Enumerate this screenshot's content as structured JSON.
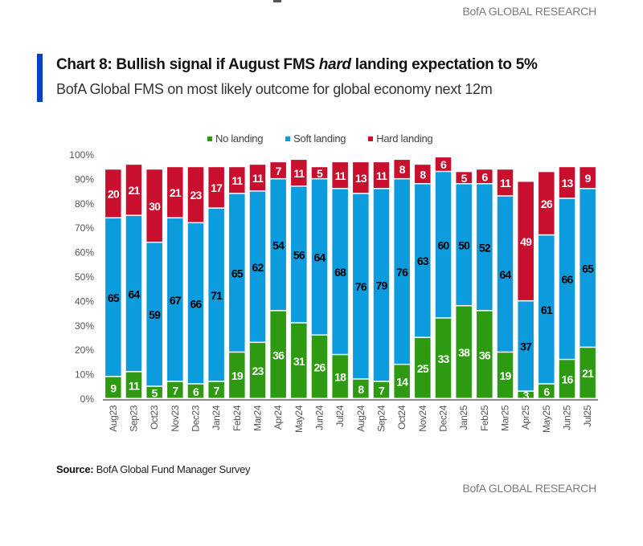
{
  "header": {
    "brand": "BofA GLOBAL RESEARCH"
  },
  "title": {
    "prefix": "Chart 8: Bullish signal if August FMS ",
    "emphasis": "hard",
    "suffix": " landing expectation to 5%",
    "subtitle": "BofA Global FMS on most likely outcome for global economy next 12m"
  },
  "colors": {
    "no_landing": "#2e9a12",
    "soft_landing": "#0c9bdc",
    "hard_landing": "#c8102e",
    "accent": "#0a3fc6"
  },
  "source": {
    "label": "Source:",
    "text": " BofA Global Fund Manager Survey"
  },
  "footer": {
    "brand": "BofA GLOBAL RESEARCH"
  },
  "chart_data": {
    "type": "bar",
    "stacked": true,
    "title": "Chart 8: Bullish signal if August FMS hard landing expectation to 5%",
    "subtitle": "BofA Global FMS on most likely outcome for global economy next 12m",
    "xlabel": "",
    "ylabel": "",
    "ylim": [
      0,
      100
    ],
    "yticks": [
      "0%",
      "10%",
      "20%",
      "30%",
      "40%",
      "50%",
      "60%",
      "70%",
      "80%",
      "90%",
      "100%"
    ],
    "legend_position": "top",
    "categories": [
      "Aug23",
      "Sep23",
      "Oct23",
      "Nov23",
      "Dec23",
      "Jan24",
      "Feb24",
      "Mar24",
      "Apr24",
      "May24",
      "Jun24",
      "Jul24",
      "Aug24",
      "Sep24",
      "Oct24",
      "Nov24",
      "Dec24",
      "Jan25",
      "Feb25",
      "Mar25",
      "Apr25",
      "May25",
      "Jun25",
      "Jul25"
    ],
    "series": [
      {
        "name": "No landing",
        "color": "#2e9a12",
        "label_color": "#ffffff",
        "values": [
          9,
          11,
          5,
          7,
          6,
          7,
          19,
          23,
          36,
          31,
          26,
          18,
          8,
          7,
          14,
          25,
          33,
          38,
          36,
          19,
          3,
          6,
          16,
          21
        ]
      },
      {
        "name": "Soft landing",
        "color": "#0c9bdc",
        "label_color": "#000000",
        "values": [
          65,
          64,
          59,
          67,
          66,
          71,
          65,
          62,
          54,
          56,
          64,
          68,
          76,
          79,
          76,
          63,
          60,
          50,
          52,
          64,
          37,
          61,
          66,
          65
        ]
      },
      {
        "name": "Hard landing",
        "color": "#c8102e",
        "label_color": "#ffffff",
        "values": [
          20,
          21,
          30,
          21,
          23,
          17,
          11,
          11,
          7,
          11,
          5,
          11,
          13,
          11,
          8,
          8,
          6,
          5,
          6,
          11,
          49,
          26,
          13,
          9
        ]
      }
    ]
  }
}
